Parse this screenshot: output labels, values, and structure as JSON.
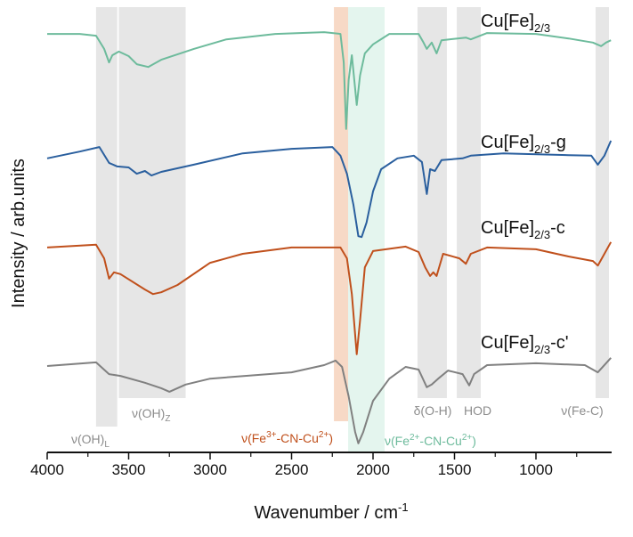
{
  "chart_data": {
    "type": "line",
    "xlabel": "Wavenumber / cm",
    "xlabel_superscript": "-1",
    "ylabel": "Intensity / arb.units",
    "xlim": [
      4000,
      540
    ],
    "x_reversed": true,
    "ylim": [
      0,
      100
    ],
    "y_ticks_shown": false,
    "grid": false,
    "x_ticks": [
      4000,
      3500,
      3000,
      2500,
      2000,
      1500,
      1000
    ],
    "x_tick_labels": [
      "4000",
      "3500",
      "3000",
      "2500",
      "2000",
      "1500",
      "1000"
    ],
    "x_minor_ticks": [
      3750,
      3250,
      2750,
      2250,
      1750,
      1250,
      750
    ],
    "bands": [
      {
        "range": [
          3700,
          3570
        ],
        "color": "#e6e6e6",
        "label_main": "ν(OH)",
        "label_sub": "L",
        "label_color": "#8c8c8c"
      },
      {
        "range": [
          3560,
          3150
        ],
        "color": "#e6e6e6",
        "label_main": "ν(OH)",
        "label_sub": "Z",
        "label_color": "#8c8c8c"
      },
      {
        "range": [
          2240,
          2153
        ],
        "color": "#f7d9c6",
        "label_parts": [
          "ν(Fe",
          "3+",
          "-CN-Cu",
          "2+",
          ")"
        ],
        "label_color": "#c0501c"
      },
      {
        "range": [
          2153,
          1929
        ],
        "color": "#e4f5ee",
        "label_parts": [
          "ν(Fe",
          "2+",
          "-CN-Cu",
          "2+",
          ")"
        ],
        "label_color": "#6dbb9c"
      },
      {
        "range": [
          1727,
          1547
        ],
        "color": "#e6e6e6",
        "label_main": "δ(O-H)",
        "label_color": "#8c8c8c"
      },
      {
        "range": [
          1486,
          1339
        ],
        "color": "#e6e6e6",
        "label_main": "HOD",
        "label_color": "#8c8c8c"
      },
      {
        "range": [
          634,
          552
        ],
        "color": "#e6e6e6",
        "label_main": "ν(Fe-C)",
        "label_color": "#8c8c8c"
      }
    ],
    "series": [
      {
        "name_main": "Cu[Fe]",
        "name_sub": "2/3",
        "name_suffix": "",
        "color": "#6dbb9c",
        "points": [
          [
            4000,
            92.5
          ],
          [
            3800,
            92.5
          ],
          [
            3700,
            92.1
          ],
          [
            3650,
            89.2
          ],
          [
            3620,
            86.2
          ],
          [
            3600,
            87.8
          ],
          [
            3560,
            88.6
          ],
          [
            3500,
            87.6
          ],
          [
            3450,
            85.8
          ],
          [
            3380,
            85.2
          ],
          [
            3300,
            86.8
          ],
          [
            3100,
            89.2
          ],
          [
            2900,
            91.3
          ],
          [
            2600,
            92.5
          ],
          [
            2300,
            92.9
          ],
          [
            2200,
            92.5
          ],
          [
            2180,
            86.2
          ],
          [
            2165,
            71.5
          ],
          [
            2150,
            82.3
          ],
          [
            2130,
            87.8
          ],
          [
            2100,
            76.8
          ],
          [
            2080,
            83.3
          ],
          [
            2050,
            88.2
          ],
          [
            2000,
            90.2
          ],
          [
            1900,
            92.5
          ],
          [
            1720,
            92.5
          ],
          [
            1690,
            90.6
          ],
          [
            1670,
            89.2
          ],
          [
            1640,
            90.6
          ],
          [
            1610,
            88.2
          ],
          [
            1580,
            91.1
          ],
          [
            1430,
            91.7
          ],
          [
            1400,
            91.3
          ],
          [
            1300,
            92.7
          ],
          [
            1000,
            92.5
          ],
          [
            800,
            91.5
          ],
          [
            650,
            90.6
          ],
          [
            600,
            89.8
          ],
          [
            570,
            90.6
          ],
          [
            540,
            91.1
          ]
        ]
      },
      {
        "name_main": "Cu[Fe]",
        "name_sub": "2/3",
        "name_suffix": "-g",
        "color": "#2a5f9e",
        "points": [
          [
            4000,
            65.0
          ],
          [
            3800,
            66.5
          ],
          [
            3680,
            67.5
          ],
          [
            3620,
            64.0
          ],
          [
            3570,
            63.2
          ],
          [
            3500,
            63.0
          ],
          [
            3450,
            61.6
          ],
          [
            3400,
            62.2
          ],
          [
            3360,
            61.2
          ],
          [
            3300,
            62.0
          ],
          [
            3100,
            63.6
          ],
          [
            2800,
            66.1
          ],
          [
            2500,
            67.1
          ],
          [
            2250,
            67.5
          ],
          [
            2200,
            65.6
          ],
          [
            2160,
            61.6
          ],
          [
            2120,
            54.7
          ],
          [
            2090,
            47.8
          ],
          [
            2070,
            47.6
          ],
          [
            2040,
            50.8
          ],
          [
            2000,
            57.7
          ],
          [
            1950,
            62.6
          ],
          [
            1850,
            65.0
          ],
          [
            1750,
            65.6
          ],
          [
            1700,
            64.2
          ],
          [
            1670,
            57.1
          ],
          [
            1650,
            62.6
          ],
          [
            1620,
            62.2
          ],
          [
            1580,
            64.6
          ],
          [
            1450,
            65.0
          ],
          [
            1400,
            65.6
          ],
          [
            1200,
            66.1
          ],
          [
            800,
            65.7
          ],
          [
            660,
            65.6
          ],
          [
            620,
            63.6
          ],
          [
            580,
            65.6
          ],
          [
            540,
            68.9
          ]
        ]
      },
      {
        "name_main": "Cu[Fe]",
        "name_sub": "2/3",
        "name_suffix": "-c",
        "color": "#c0501c",
        "points": [
          [
            4000,
            45.3
          ],
          [
            3700,
            45.9
          ],
          [
            3650,
            42.9
          ],
          [
            3620,
            38.4
          ],
          [
            3590,
            39.8
          ],
          [
            3550,
            39.4
          ],
          [
            3400,
            36.0
          ],
          [
            3350,
            35.0
          ],
          [
            3300,
            35.4
          ],
          [
            3200,
            37.0
          ],
          [
            3000,
            41.9
          ],
          [
            2800,
            43.9
          ],
          [
            2500,
            45.3
          ],
          [
            2200,
            45.3
          ],
          [
            2160,
            42.9
          ],
          [
            2130,
            35.0
          ],
          [
            2100,
            21.7
          ],
          [
            2080,
            29.1
          ],
          [
            2050,
            40.9
          ],
          [
            2000,
            44.5
          ],
          [
            1800,
            45.5
          ],
          [
            1720,
            44.3
          ],
          [
            1680,
            40.9
          ],
          [
            1650,
            39.0
          ],
          [
            1630,
            39.8
          ],
          [
            1610,
            39.0
          ],
          [
            1570,
            43.9
          ],
          [
            1470,
            42.9
          ],
          [
            1430,
            41.7
          ],
          [
            1400,
            43.9
          ],
          [
            1300,
            45.3
          ],
          [
            1000,
            44.9
          ],
          [
            800,
            43.3
          ],
          [
            650,
            42.3
          ],
          [
            620,
            41.3
          ],
          [
            580,
            43.9
          ],
          [
            540,
            46.5
          ]
        ]
      },
      {
        "name_main": "Cu[Fe]",
        "name_sub": "2/3",
        "name_suffix": "-c'",
        "color": "#808080",
        "points": [
          [
            4000,
            19.1
          ],
          [
            3700,
            19.9
          ],
          [
            3620,
            17.3
          ],
          [
            3550,
            16.9
          ],
          [
            3400,
            15.4
          ],
          [
            3300,
            14.2
          ],
          [
            3250,
            13.4
          ],
          [
            3150,
            15.0
          ],
          [
            3000,
            16.3
          ],
          [
            2500,
            17.7
          ],
          [
            2300,
            19.3
          ],
          [
            2230,
            20.3
          ],
          [
            2190,
            18.9
          ],
          [
            2150,
            12.4
          ],
          [
            2110,
            4.5
          ],
          [
            2090,
            2.0
          ],
          [
            2060,
            4.5
          ],
          [
            2000,
            11.4
          ],
          [
            1900,
            16.3
          ],
          [
            1800,
            18.9
          ],
          [
            1720,
            18.3
          ],
          [
            1670,
            14.4
          ],
          [
            1640,
            15.0
          ],
          [
            1600,
            16.3
          ],
          [
            1540,
            18.1
          ],
          [
            1450,
            17.3
          ],
          [
            1410,
            14.8
          ],
          [
            1380,
            17.3
          ],
          [
            1300,
            19.3
          ],
          [
            1000,
            19.7
          ],
          [
            700,
            19.3
          ],
          [
            620,
            17.7
          ],
          [
            560,
            20.1
          ],
          [
            540,
            20.9
          ]
        ]
      }
    ]
  }
}
